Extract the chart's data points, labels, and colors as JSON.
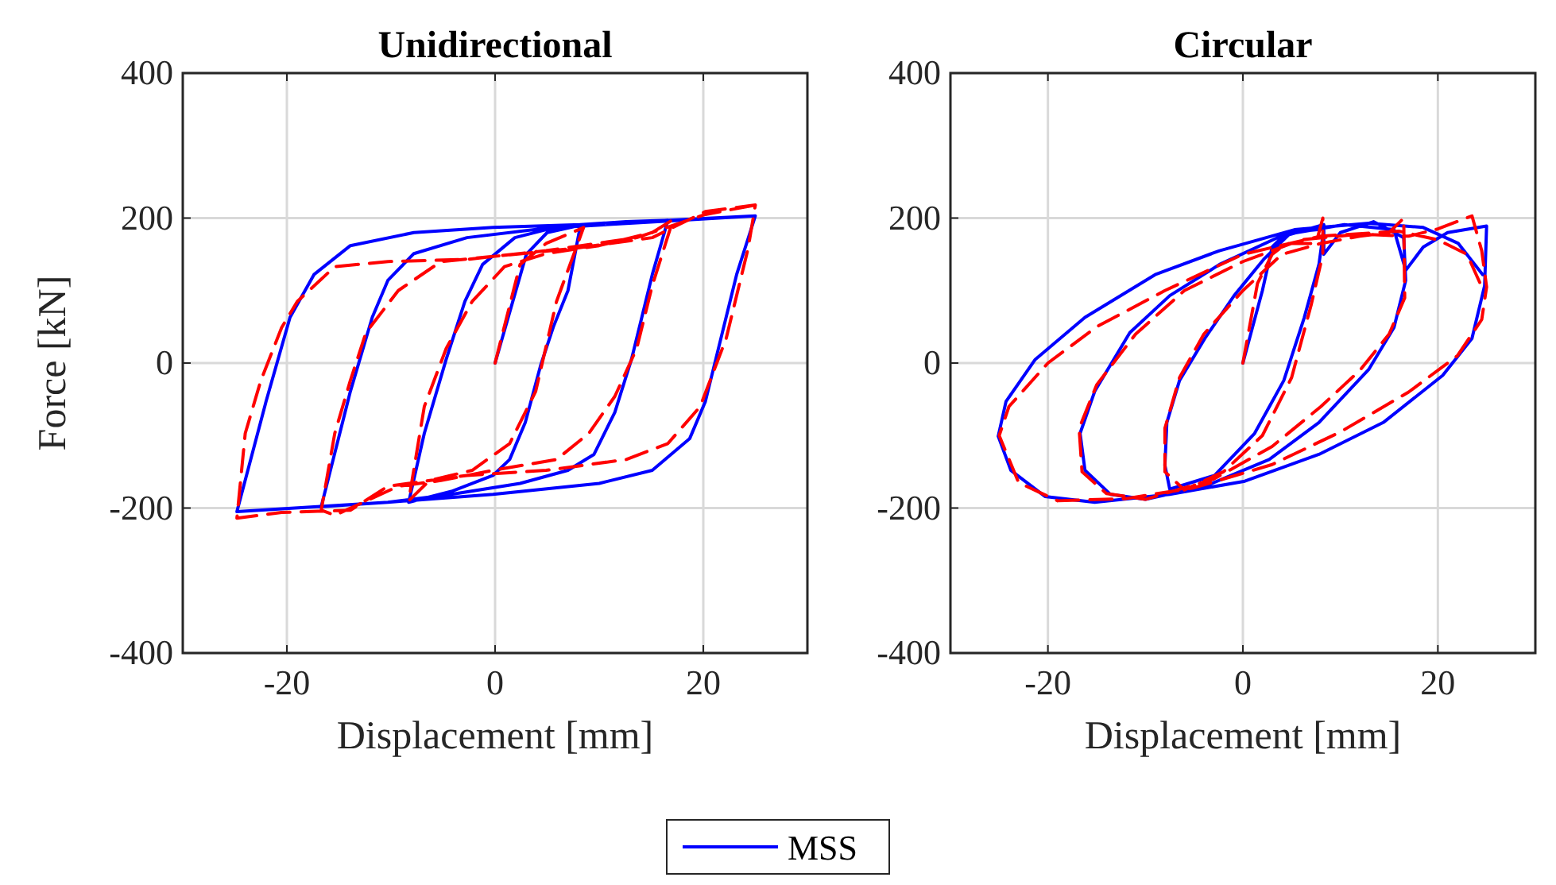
{
  "chart_data": [
    {
      "type": "line",
      "title": "Unidirectional",
      "xlabel": "Displacement [mm]",
      "ylabel": "Force [kN]",
      "xlim": [
        -30,
        30
      ],
      "xticks": [
        -20,
        0,
        20
      ],
      "ylim": [
        -400,
        400
      ],
      "yticks": [
        -400,
        -200,
        0,
        200,
        400
      ],
      "grid": true,
      "legend": "bottom",
      "series": [
        {
          "name": "MSS",
          "color": "#0000ff",
          "line_style": "solid",
          "x": [
            0,
            3,
            5,
            8.2,
            7,
            5.6,
            4.4,
            2.9,
            1.4,
            -0.2,
            -4.2,
            -8.3,
            -6.8,
            -4.7,
            -2.9,
            -1.2,
            1.9,
            4.9,
            8.2,
            12.6,
            16.6,
            15.1,
            13.1,
            11.5,
            9.5,
            7,
            2.4,
            -4.2,
            -10.3,
            -16.7,
            -13.9,
            -11.8,
            -10.3,
            -7.8,
            -2.7,
            4.9,
            16.6,
            25,
            23.2,
            20.2,
            18.7,
            15.1,
            10,
            -0.2,
            -10.3,
            -24.8,
            -22,
            -19.7,
            -17.4,
            -13.9,
            -7.8,
            -0.2,
            8.2,
            25
          ],
          "values": [
            0,
            150,
            180,
            190,
            100,
            50,
            -2,
            -82,
            -133,
            -155,
            -177,
            -192,
            -97,
            5,
            85,
            136,
            173,
            184,
            191,
            195,
            197,
            122,
            5,
            -68,
            -126,
            -148,
            -166,
            -181,
            -192,
            -198,
            -39,
            63,
            114,
            151,
            173,
            186,
            196,
            203,
            122,
            -53,
            -104,
            -148,
            -166,
            -181,
            -192,
            -205,
            -53,
            63,
            122,
            162,
            180,
            187,
            191,
            203
          ]
        },
        {
          "color": "#ff0000",
          "line_style": "dashed",
          "x": [
            0,
            2.4,
            4.9,
            8.5,
            5.9,
            3.9,
            1.4,
            -2.2,
            -6.3,
            -8.3,
            -6.8,
            -4.7,
            -2.2,
            0.9,
            4.9,
            10,
            15.1,
            17.1,
            15.1,
            13.6,
            11.5,
            9,
            5.9,
            -0.2,
            -5.2,
            -9.3,
            -15.4,
            -16.7,
            -15.4,
            -13.9,
            -12.4,
            -9.3,
            -5.2,
            -0.2,
            7.5,
            15.1,
            20.2,
            25,
            24.3,
            22.2,
            19.7,
            16.6,
            12.6,
            4.9,
            -2.7,
            -10.3,
            -13.9,
            -20.5,
            -24.8,
            -24,
            -22.5,
            -20.5,
            -19,
            -15.4,
            -10.3,
            -2.7,
            4.9,
            13.6,
            20.2,
            25
          ],
          "values": [
            0,
            136,
            165,
            187,
            85,
            -39,
            -111,
            -148,
            -162,
            -190,
            -60,
            20,
            85,
            133,
            151,
            162,
            180,
            198,
            107,
            20,
            -46,
            -97,
            -133,
            -148,
            -162,
            -170,
            -210,
            -203,
            -97,
            -24,
            42,
            100,
            140,
            147,
            158,
            173,
            209,
            218,
            158,
            34,
            -60,
            -111,
            -133,
            -148,
            -155,
            -170,
            -203,
            -206,
            -214,
            -97,
            -24,
            49,
            85,
            133,
            140,
            143,
            155,
            173,
            205,
            218
          ]
        }
      ]
    },
    {
      "type": "line",
      "title": "Circular",
      "xlabel": "Displacement [mm]",
      "xlim": [
        -30,
        30
      ],
      "xticks": [
        -20,
        0,
        20
      ],
      "ylim": [
        -400,
        400
      ],
      "yticks": [
        -400,
        -200,
        0,
        200,
        400
      ],
      "grid": true,
      "series": [
        {
          "color": "#0000ff",
          "line_style": "solid",
          "x": [
            0,
            2,
            3,
            4.5,
            8.3,
            7.8,
            6.3,
            4.2,
            1.2,
            -2.9,
            -7.5,
            -8,
            -7.8,
            -6.5,
            -3.9,
            -0.9,
            2.2,
            4.7,
            8.3,
            8.3,
            10,
            13.4,
            16.5,
            16.7,
            15.5,
            12.9,
            7.8,
            2.7,
            -3.9,
            -10,
            -13.6,
            -16.2,
            -16.7,
            -15.2,
            -11.6,
            -7.5,
            -2.4,
            4.2,
            10.4,
            15.5,
            16.7,
            18.5,
            21,
            25,
            24.8,
            23.5,
            20.5,
            14.4,
            7.8,
            0.2,
            -7.5,
            -15.2,
            -20.3,
            -23.8,
            -25.1,
            -24.3,
            -21.3,
            -16.2,
            -9,
            -2.4,
            5.3,
            12.9,
            18.5,
            22.1,
            24.6
          ],
          "values": [
            0,
            100,
            160,
            180,
            185,
            136,
            63,
            -24,
            -97,
            -155,
            -174,
            -141,
            -82,
            -24,
            34,
            93,
            144,
            177,
            191,
            150,
            180,
            195,
            173,
            114,
            49,
            -9,
            -82,
            -133,
            -170,
            -188,
            -181,
            -148,
            -97,
            -39,
            42,
            93,
            136,
            177,
            191,
            184,
            128,
            160,
            180,
            189,
            107,
            34,
            -17,
            -82,
            -126,
            -163,
            -181,
            -192,
            -184,
            -148,
            -101,
            -53,
            5,
            63,
            122,
            155,
            184,
            193,
            187,
            165,
            122
          ]
        },
        {
          "color": "#ff0000",
          "line_style": "dashed",
          "x": [
            0,
            1.5,
            3,
            4.5,
            7.5,
            8.2,
            8.2,
            7,
            5,
            2,
            -2,
            -6,
            -8,
            -8,
            -6.5,
            -4,
            0,
            4,
            8,
            12,
            15,
            16.5,
            16.6,
            15,
            12,
            8,
            3,
            -3,
            -10,
            -14,
            -16.5,
            -16.8,
            -15,
            -11,
            -6,
            0,
            6,
            12,
            17,
            20,
            23.5,
            24.5,
            25,
            24.5,
            22,
            17,
            10,
            3,
            -5,
            -12,
            -19,
            -23,
            -25,
            -24,
            -20,
            -15,
            -8,
            0,
            8,
            16,
            20,
            23,
            24.5
          ],
          "values": [
            0,
            110,
            150,
            165,
            165,
            200,
            150,
            80,
            -20,
            -100,
            -150,
            -175,
            -150,
            -90,
            -20,
            40,
            100,
            150,
            165,
            175,
            180,
            200,
            90,
            40,
            -10,
            -60,
            -115,
            -160,
            -188,
            -180,
            -150,
            -90,
            -30,
            40,
            100,
            140,
            170,
            178,
            175,
            185,
            203,
            155,
            105,
            60,
            10,
            -40,
            -95,
            -140,
            -172,
            -187,
            -190,
            -165,
            -100,
            -60,
            0,
            50,
            100,
            150,
            175,
            182,
            170,
            150,
            105
          ]
        }
      ]
    }
  ]
}
